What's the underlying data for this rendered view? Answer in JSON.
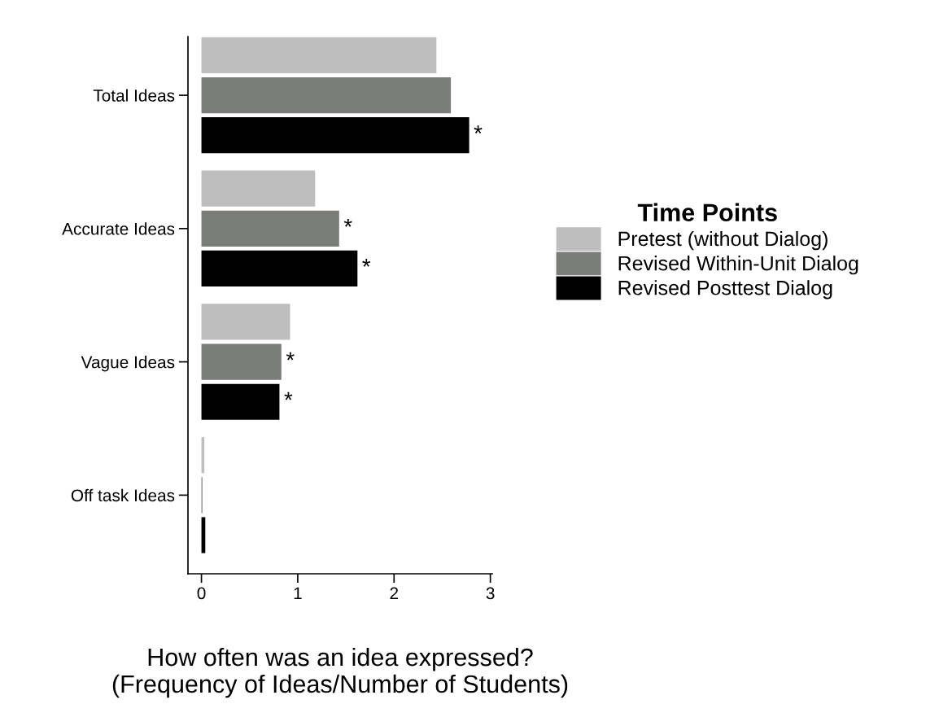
{
  "chart_data": {
    "type": "bar",
    "orientation": "horizontal",
    "categories": [
      "Total Ideas",
      "Accurate Ideas",
      "Vague Ideas",
      "Off task Ideas"
    ],
    "series": [
      {
        "name": "Pretest (without Dialog)",
        "color": "#bebebe",
        "values": [
          2.44,
          1.18,
          0.92,
          0.03
        ]
      },
      {
        "name": "Revised Within-Unit Dialog",
        "color": "#7a7d78",
        "values": [
          2.59,
          1.43,
          0.83,
          0.01
        ],
        "value_labels": [
          null,
          "*",
          "*",
          null
        ]
      },
      {
        "name": "Revised Posttest Dialog",
        "color": "#000000",
        "values": [
          2.78,
          1.62,
          0.81,
          0.04
        ],
        "value_labels": [
          "*",
          "*",
          "*",
          null
        ]
      }
    ],
    "xlabel": "How often was an idea expressed?\n(Frequency of Ideas/Number of Students)",
    "legend_title": "Time Points",
    "legend": "right",
    "xlim": [
      -0.14,
      3.02
    ],
    "xticks": [
      0,
      1,
      2,
      3
    ],
    "grid": false
  }
}
